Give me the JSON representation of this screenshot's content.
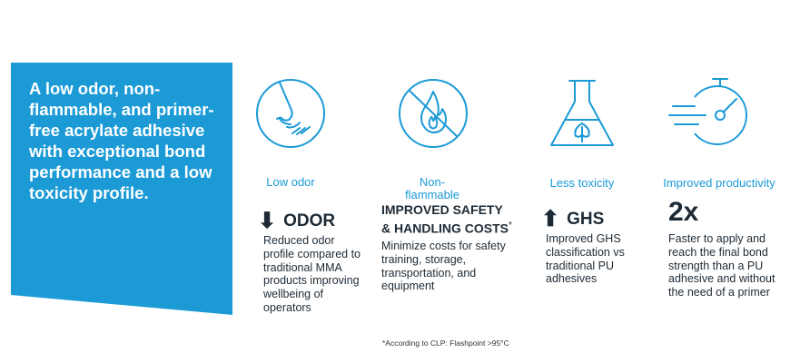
{
  "panel": {
    "text": "A low odor, non-flammable, and primer-free acrylate adhesive with exceptional bond performance and a low toxicity profile.",
    "color": "#1b9ad6"
  },
  "features": [
    {
      "label": "Low odor",
      "icon": "nose-icon",
      "arrow": "⬇",
      "headline": "ODOR",
      "description": "Reduced odor profile compared to traditional MMA products improving wellbeing of operators"
    },
    {
      "label": "Non-flammable",
      "icon": "no-fire-icon",
      "headline_line1": "IMPROVED SAFETY",
      "headline_line2": "& HANDLING COSTS",
      "headline_marker": "*",
      "description": "Minimize costs for safety training, storage, transportation, and equipment"
    },
    {
      "label": "Less toxicity",
      "icon": "flask-leaf-icon",
      "arrow": "⬆",
      "headline": "GHS",
      "description": "Improved GHS classification vs traditional PU adhesives"
    },
    {
      "label": "Improved productivity",
      "icon": "stopwatch-icon",
      "headline": "2x",
      "description": "Faster to apply and reach the final bond strength than a PU adhesive and without the need of a primer"
    }
  ],
  "footnote": "*According to CLP: Flashpoint >95°C",
  "colors": {
    "accent": "#1b9ad6",
    "text": "#1d2a35"
  }
}
